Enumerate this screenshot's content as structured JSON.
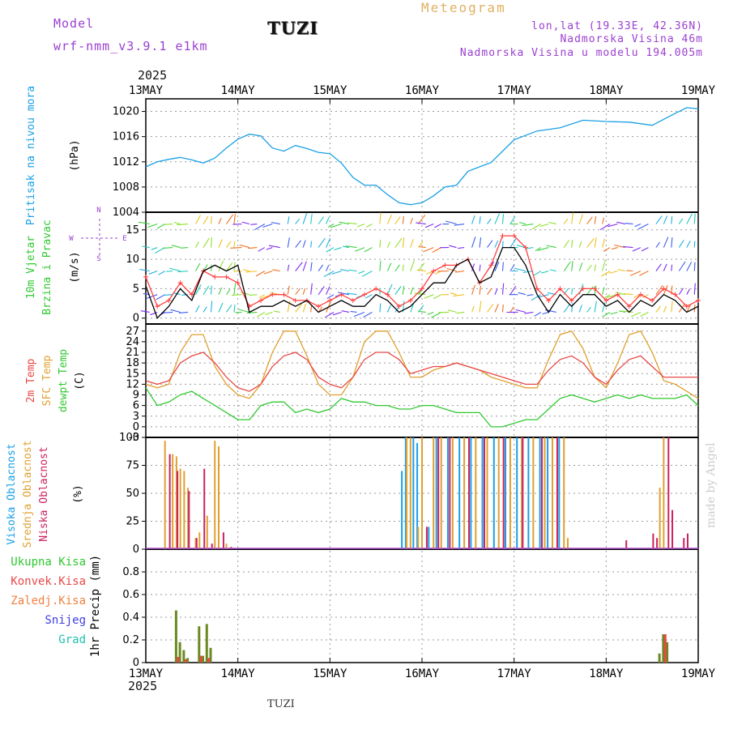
{
  "header": {
    "model_label": "Model",
    "model_name": "wrf-nmm_v3.9.1 e1km",
    "station": "TUZI",
    "title": "Meteogram",
    "location": "lon,lat (19.33E, 42.36N)",
    "elevation": "Nadmorska Visina 46m",
    "model_elevation": "Nadmorska Visina u modelu 194.005m"
  },
  "time_axis": {
    "year": "2025",
    "dates": [
      "13MAY",
      "14MAY",
      "15MAY",
      "16MAY",
      "17MAY",
      "18MAY",
      "19MAY"
    ]
  },
  "footer": {
    "station": "TUZI"
  },
  "signature": "made by Angel",
  "colors": {
    "pressure": "#1aa0e6",
    "temp2m": "#e84848",
    "sfc": "#e0a030",
    "dewpt": "#30c830",
    "wind_black": "#000000",
    "wind_red": "#ff4040",
    "cloud_high": "#1aa0e6",
    "cloud_mid": "#e0a030",
    "cloud_low": "#cc2060",
    "precip_total": "#6a8a20",
    "precip_conv": "#e84848",
    "precip_strat": "#f08040",
    "snow": "#4040e0",
    "hail": "#20c0b0",
    "grid": "#9a9a9a"
  },
  "chart_data": [
    {
      "type": "line",
      "panel": "pressure",
      "ylabel_lines": [
        "Pritisak na nivou mora"
      ],
      "unit": "(hPa)",
      "ylim": [
        1004,
        1022
      ],
      "yticks": [
        1004,
        1008,
        1012,
        1016,
        1020
      ],
      "x_hours": [
        0,
        3,
        6,
        9,
        12,
        15,
        18,
        21,
        24,
        27,
        30,
        33,
        36,
        39,
        42,
        45,
        48,
        51,
        54,
        57,
        60,
        63,
        66,
        69,
        72,
        75,
        78,
        81,
        84,
        87,
        90,
        96,
        102,
        108,
        114,
        120,
        126,
        132,
        138,
        141,
        144
      ],
      "series": [
        {
          "values": [
            1011.2,
            1012,
            1012.4,
            1012.7,
            1012.3,
            1011.8,
            1012.6,
            1014.2,
            1015.6,
            1016.4,
            1016.1,
            1014.2,
            1013.7,
            1014.6,
            1014.1,
            1013.5,
            1013.3,
            1011.8,
            1009.5,
            1008.3,
            1008.3,
            1006.8,
            1005.5,
            1005.2,
            1005.5,
            1006.6,
            1008,
            1008.3,
            1010.5,
            1011.2,
            1011.9,
            1015.5,
            1016.9,
            1017.4,
            1018.6,
            1018.4,
            1018.3,
            1017.8,
            1019.7,
            1020.6,
            1020.4
          ]
        }
      ]
    },
    {
      "type": "line",
      "panel": "wind",
      "ylabel_lines": [
        "10m Vjetar",
        "Brzina i Pravac"
      ],
      "unit": "(m/s)",
      "compass": {
        "n": "N",
        "w": "W",
        "e": "E",
        "s": "S"
      },
      "ylim": [
        -1,
        18
      ],
      "yticks": [
        0,
        5,
        10,
        15
      ],
      "x_hours": [
        0,
        3,
        6,
        9,
        12,
        15,
        18,
        21,
        24,
        27,
        30,
        33,
        36,
        39,
        42,
        45,
        48,
        51,
        54,
        57,
        60,
        63,
        66,
        69,
        72,
        75,
        78,
        81,
        84,
        87,
        90,
        93,
        96,
        99,
        102,
        105,
        108,
        111,
        114,
        117,
        120,
        123,
        126,
        129,
        132,
        135,
        138,
        141,
        144
      ],
      "series": [
        {
          "name": "black",
          "values": [
            5.5,
            0,
            2,
            5,
            3,
            8,
            9,
            8,
            9,
            1,
            2,
            2,
            3,
            2,
            3,
            1,
            2,
            3,
            2,
            2,
            4,
            3,
            1,
            2,
            4,
            6,
            6,
            9,
            10,
            6,
            7,
            12,
            12,
            9,
            4,
            1,
            4,
            2,
            4,
            4,
            2,
            3,
            1,
            3,
            2,
            4,
            3,
            1,
            2
          ]
        },
        {
          "name": "red",
          "values": [
            7,
            2,
            3,
            6,
            4,
            8,
            7,
            7,
            6,
            2,
            3,
            4,
            4,
            3,
            3,
            2,
            3,
            4,
            3,
            4,
            5,
            4,
            2,
            3,
            5,
            8,
            9,
            9,
            10,
            6,
            9,
            14,
            14,
            12,
            5,
            3,
            5,
            3,
            5,
            5,
            3,
            4,
            2,
            4,
            3,
            5,
            4,
            2,
            3
          ]
        }
      ]
    },
    {
      "type": "line",
      "panel": "temperature",
      "ylabel_lines": [
        "2m Temp",
        "SFC Temp",
        "dewpt Temp"
      ],
      "unit": "(C)",
      "ylim": [
        -3,
        29
      ],
      "yticks": [
        -3,
        0,
        3,
        6,
        9,
        12,
        15,
        18,
        21,
        24,
        27
      ],
      "x_hours": [
        0,
        3,
        6,
        9,
        12,
        15,
        18,
        21,
        24,
        27,
        30,
        33,
        36,
        39,
        42,
        45,
        48,
        51,
        54,
        57,
        60,
        63,
        66,
        69,
        72,
        75,
        78,
        81,
        84,
        87,
        90,
        93,
        96,
        99,
        102,
        105,
        108,
        111,
        114,
        117,
        120,
        123,
        126,
        129,
        132,
        135,
        138,
        141,
        144
      ],
      "series": [
        {
          "name": "2m Temp",
          "values": [
            13,
            12,
            13,
            18,
            20,
            21,
            18,
            14,
            11,
            10,
            12,
            17,
            20,
            21,
            19,
            14,
            12,
            11,
            14,
            19,
            21,
            21,
            19,
            15,
            16,
            17,
            17,
            18,
            17,
            16,
            15,
            14,
            13,
            12,
            12,
            16,
            19,
            20,
            18,
            14,
            12,
            16,
            19,
            20,
            17,
            14,
            14,
            14,
            14
          ]
        },
        {
          "name": "SFC Temp",
          "values": [
            12,
            11,
            12,
            21,
            26,
            26,
            17,
            12,
            9,
            8,
            12,
            21,
            27,
            27,
            20,
            12,
            9,
            9,
            14,
            24,
            27,
            27,
            21,
            14,
            14,
            16,
            17,
            18,
            17,
            16,
            14,
            13,
            12,
            11,
            11,
            19,
            26,
            27,
            22,
            14,
            11,
            18,
            26,
            27,
            21,
            13,
            12,
            10,
            8
          ]
        },
        {
          "name": "dewpt Temp",
          "values": [
            11,
            6,
            7,
            9,
            10,
            8,
            6,
            4,
            2,
            2,
            6,
            7,
            7,
            4,
            5,
            4,
            5,
            8,
            7,
            7,
            6,
            6,
            5,
            5,
            6,
            6,
            5,
            4,
            4,
            4,
            0,
            0,
            1,
            2,
            2,
            5,
            8,
            9,
            8,
            7,
            8,
            9,
            8,
            9,
            8,
            8,
            8,
            9,
            6
          ]
        }
      ]
    },
    {
      "type": "bar",
      "panel": "cloud",
      "ylabel_lines": [
        "Visoka Oblacnost",
        "Srednja Oblacnost",
        "Niska Oblacnost"
      ],
      "unit": "(%)",
      "ylim": [
        0,
        100
      ],
      "yticks": [
        0,
        25,
        50,
        75,
        100
      ],
      "series": [
        {
          "name": "Visoka Oblacnost",
          "points": [
            [
              67,
              70
            ],
            [
              68,
              100
            ],
            [
              70,
              100
            ],
            [
              71,
              95
            ],
            [
              74,
              20
            ],
            [
              76,
              100
            ],
            [
              79,
              100
            ],
            [
              82,
              100
            ],
            [
              85,
              100
            ],
            [
              88,
              100
            ],
            [
              91,
              100
            ],
            [
              94,
              100
            ],
            [
              97,
              100
            ],
            [
              100,
              100
            ],
            [
              103,
              100
            ],
            [
              105,
              100
            ],
            [
              108,
              100
            ]
          ]
        },
        {
          "name": "Srednja Oblacnost",
          "points": [
            [
              5,
              97
            ],
            [
              7,
              85
            ],
            [
              8,
              83
            ],
            [
              9,
              72
            ],
            [
              10,
              70
            ],
            [
              11,
              55
            ],
            [
              13,
              10
            ],
            [
              14,
              15
            ],
            [
              16,
              30
            ],
            [
              18,
              97
            ],
            [
              19,
              92
            ],
            [
              21,
              5
            ],
            [
              68,
              100
            ],
            [
              69,
              100
            ],
            [
              71,
              20
            ],
            [
              72,
              100
            ],
            [
              75,
              100
            ],
            [
              77,
              100
            ],
            [
              80,
              100
            ],
            [
              83,
              100
            ],
            [
              86,
              100
            ],
            [
              89,
              100
            ],
            [
              92,
              100
            ],
            [
              95,
              100
            ],
            [
              98,
              100
            ],
            [
              101,
              100
            ],
            [
              104,
              100
            ],
            [
              106,
              100
            ],
            [
              109,
              100
            ],
            [
              110,
              10
            ],
            [
              134,
              55
            ],
            [
              135,
              100
            ]
          ]
        },
        {
          "name": "Niska Oblacnost",
          "points": [
            [
              6,
              85
            ],
            [
              8,
              70
            ],
            [
              11,
              52
            ],
            [
              13,
              10
            ],
            [
              15,
              72
            ],
            [
              17,
              5
            ],
            [
              20,
              15
            ],
            [
              22,
              2
            ],
            [
              73,
              20
            ],
            [
              76,
              100
            ],
            [
              79,
              100
            ],
            [
              84,
              100
            ],
            [
              88,
              100
            ],
            [
              93,
              100
            ],
            [
              98,
              100
            ],
            [
              103,
              100
            ],
            [
              107,
              100
            ],
            [
              125,
              8
            ],
            [
              132,
              14
            ],
            [
              133,
              10
            ],
            [
              136,
              100
            ],
            [
              137,
              35
            ],
            [
              140,
              10
            ],
            [
              141,
              14
            ]
          ]
        }
      ]
    },
    {
      "type": "bar",
      "panel": "precip",
      "ylabel_lines": [
        "1hr Precip (mm)"
      ],
      "legend": [
        "Ukupna Kisa",
        "Konvek.Kisa",
        "Zaledj.Kisa",
        "Snijeg",
        "Grad"
      ],
      "ylim": [
        0,
        1
      ],
      "yticks": [
        0,
        0.2,
        0.4,
        0.6,
        0.8
      ],
      "series": [
        {
          "name": "Ukupna Kisa",
          "points": [
            [
              8,
              0.46
            ],
            [
              9,
              0.18
            ],
            [
              10,
              0.11
            ],
            [
              11,
              0.04
            ],
            [
              14,
              0.32
            ],
            [
              15,
              0.06
            ],
            [
              16,
              0.34
            ],
            [
              17,
              0.13
            ],
            [
              134,
              0.08
            ],
            [
              135,
              0.25
            ],
            [
              136,
              0.18
            ]
          ]
        },
        {
          "name": "Konvek.Kisa",
          "points": [
            [
              8.5,
              0.05
            ],
            [
              10.5,
              0.03
            ],
            [
              14.5,
              0.06
            ],
            [
              16.5,
              0.04
            ],
            [
              135.5,
              0.25
            ]
          ]
        }
      ]
    }
  ]
}
